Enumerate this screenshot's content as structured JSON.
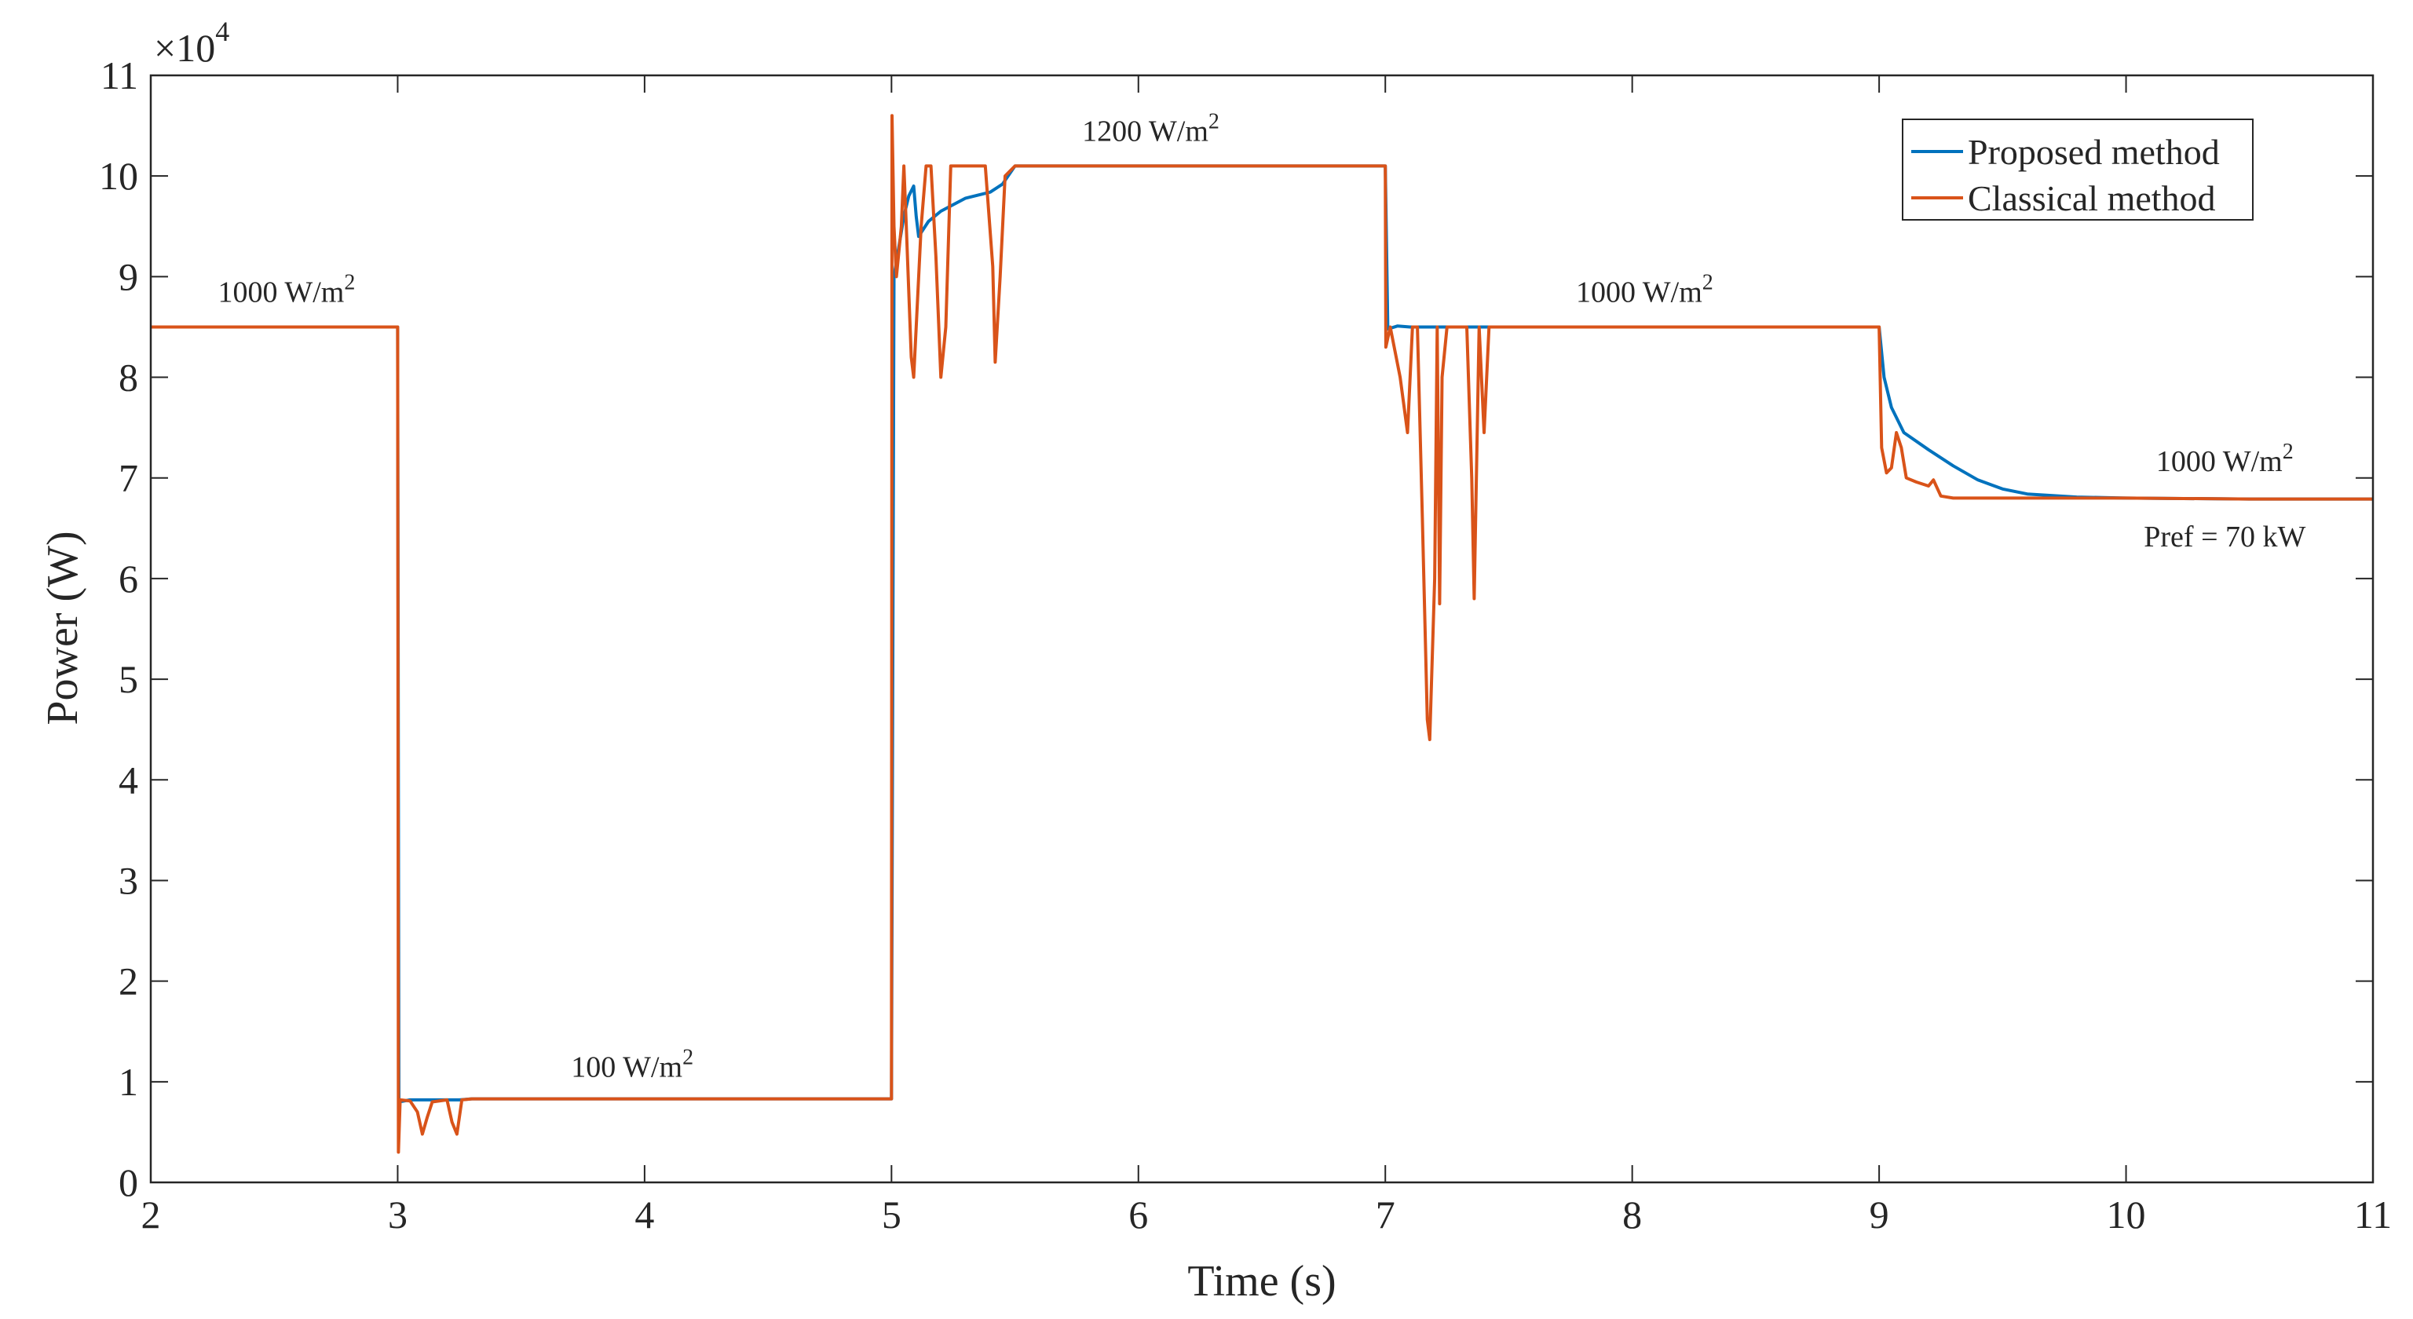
{
  "chart_data": {
    "type": "line",
    "xlabel": "Time (s)",
    "ylabel": "Power (W)",
    "xlim": [
      2,
      11
    ],
    "ylim": [
      0,
      110000
    ],
    "y_multiplier_label": "×10",
    "y_multiplier_exponent": "4",
    "xticks": [
      2,
      3,
      4,
      5,
      6,
      7,
      8,
      9,
      10,
      11
    ],
    "yticks": [
      0,
      1,
      2,
      3,
      4,
      5,
      6,
      7,
      8,
      9,
      10,
      11
    ],
    "grid": false,
    "legend_position": "top-right",
    "series": [
      {
        "name": "Proposed method",
        "color": "#0072BD",
        "points": [
          [
            2,
            85000
          ],
          [
            2.999,
            85000
          ],
          [
            3.0,
            85000
          ],
          [
            3.005,
            8000
          ],
          [
            3.05,
            8200
          ],
          [
            3.15,
            8200
          ],
          [
            3.25,
            8200
          ],
          [
            3.3,
            8300
          ],
          [
            4.999,
            8300
          ],
          [
            5.0,
            8300
          ],
          [
            5.01,
            90000
          ],
          [
            5.03,
            93000
          ],
          [
            5.05,
            96000
          ],
          [
            5.07,
            98000
          ],
          [
            5.09,
            99000
          ],
          [
            5.1,
            96000
          ],
          [
            5.11,
            94000
          ],
          [
            5.15,
            95500
          ],
          [
            5.2,
            96500
          ],
          [
            5.3,
            97800
          ],
          [
            5.4,
            98400
          ],
          [
            5.45,
            99200
          ],
          [
            5.5,
            101000
          ],
          [
            6.999,
            101000
          ],
          [
            7.0,
            101000
          ],
          [
            7.01,
            84800
          ],
          [
            7.05,
            85100
          ],
          [
            7.1,
            85000
          ],
          [
            8.999,
            85000
          ],
          [
            9.0,
            85000
          ],
          [
            9.02,
            80000
          ],
          [
            9.05,
            77000
          ],
          [
            9.1,
            74500
          ],
          [
            9.2,
            72800
          ],
          [
            9.3,
            71200
          ],
          [
            9.4,
            69800
          ],
          [
            9.5,
            68900
          ],
          [
            9.6,
            68400
          ],
          [
            9.8,
            68100
          ],
          [
            10,
            68000
          ],
          [
            10.5,
            67900
          ],
          [
            11,
            67900
          ]
        ]
      },
      {
        "name": "Classical method",
        "color": "#D95319",
        "points": [
          [
            2,
            85000
          ],
          [
            2.999,
            85000
          ],
          [
            3.0,
            85000
          ],
          [
            3.003,
            3000
          ],
          [
            3.01,
            8200
          ],
          [
            3.05,
            8100
          ],
          [
            3.08,
            7000
          ],
          [
            3.1,
            4800
          ],
          [
            3.12,
            6500
          ],
          [
            3.14,
            8000
          ],
          [
            3.2,
            8200
          ],
          [
            3.22,
            6000
          ],
          [
            3.24,
            4800
          ],
          [
            3.26,
            8200
          ],
          [
            3.3,
            8300
          ],
          [
            4.999,
            8300
          ],
          [
            5.0,
            8300
          ],
          [
            5.002,
            106000
          ],
          [
            5.01,
            95000
          ],
          [
            5.02,
            90000
          ],
          [
            5.04,
            95000
          ],
          [
            5.05,
            101000
          ],
          [
            5.06,
            95000
          ],
          [
            5.08,
            82000
          ],
          [
            5.09,
            80000
          ],
          [
            5.1,
            85000
          ],
          [
            5.12,
            95000
          ],
          [
            5.14,
            101000
          ],
          [
            5.16,
            101000
          ],
          [
            5.18,
            92000
          ],
          [
            5.2,
            80000
          ],
          [
            5.22,
            85000
          ],
          [
            5.24,
            101000
          ],
          [
            5.3,
            101000
          ],
          [
            5.38,
            101000
          ],
          [
            5.41,
            91000
          ],
          [
            5.42,
            81500
          ],
          [
            5.44,
            90000
          ],
          [
            5.46,
            100000
          ],
          [
            5.5,
            101000
          ],
          [
            6.999,
            101000
          ],
          [
            7.0,
            101000
          ],
          [
            7.002,
            83000
          ],
          [
            7.02,
            85000
          ],
          [
            7.06,
            80000
          ],
          [
            7.09,
            74500
          ],
          [
            7.11,
            85000
          ],
          [
            7.13,
            85000
          ],
          [
            7.15,
            66000
          ],
          [
            7.17,
            46000
          ],
          [
            7.18,
            44000
          ],
          [
            7.2,
            60000
          ],
          [
            7.21,
            85000
          ],
          [
            7.22,
            57500
          ],
          [
            7.23,
            80000
          ],
          [
            7.25,
            85000
          ],
          [
            7.33,
            85000
          ],
          [
            7.35,
            70000
          ],
          [
            7.36,
            58000
          ],
          [
            7.38,
            85000
          ],
          [
            7.4,
            74500
          ],
          [
            7.42,
            85000
          ],
          [
            8.999,
            85000
          ],
          [
            9.0,
            85000
          ],
          [
            9.01,
            73000
          ],
          [
            9.03,
            70500
          ],
          [
            9.05,
            71000
          ],
          [
            9.07,
            74500
          ],
          [
            9.09,
            73000
          ],
          [
            9.11,
            70000
          ],
          [
            9.15,
            69600
          ],
          [
            9.2,
            69200
          ],
          [
            9.22,
            69800
          ],
          [
            9.25,
            68200
          ],
          [
            9.3,
            68000
          ],
          [
            9.5,
            68000
          ],
          [
            10,
            68000
          ],
          [
            10.5,
            67900
          ],
          [
            11,
            67900
          ]
        ]
      }
    ],
    "annotations": [
      {
        "text": "1000 W/m",
        "sup": "2",
        "x": 2.55,
        "y": 87500
      },
      {
        "text": "100 W/m",
        "sup": "2",
        "x": 3.95,
        "y": 10500
      },
      {
        "text": "1200 W/m",
        "sup": "2",
        "x": 6.05,
        "y": 103500
      },
      {
        "text": "1000 W/m",
        "sup": "2",
        "x": 8.05,
        "y": 87500
      },
      {
        "text": "1000 W/m",
        "sup": "2",
        "x": 10.4,
        "y": 70700
      },
      {
        "text": "Pref = 70 kW",
        "sup": "",
        "x": 10.4,
        "y": 63200
      }
    ]
  }
}
